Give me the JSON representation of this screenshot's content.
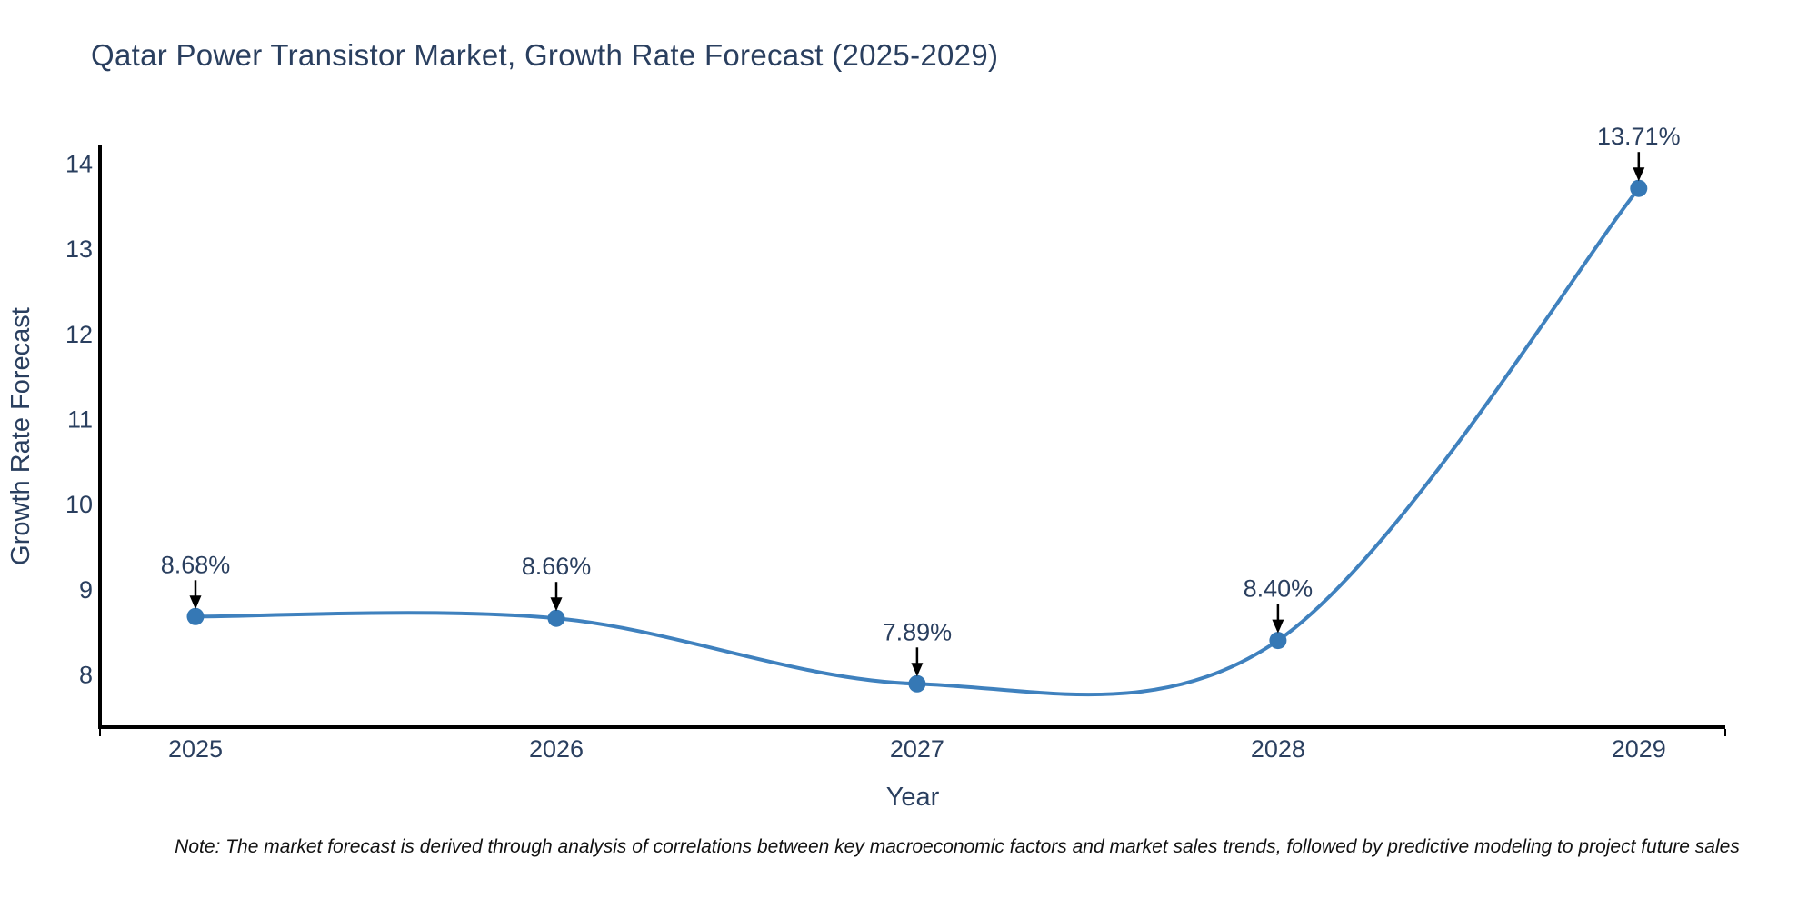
{
  "header": {
    "title": "Qatar Power Transistor Market, Growth Rate Forecast (2025-2029)"
  },
  "footnote": "Note: The market forecast is derived through analysis of correlations between key macroeconomic factors and market sales trends, followed by predictive modeling to project future sales",
  "chart_data": {
    "type": "line",
    "title": "Qatar Power Transistor Market, Growth Rate Forecast (2025-2029)",
    "xlabel": "Year",
    "ylabel": "Growth Rate Forecast",
    "categories": [
      "2025",
      "2026",
      "2027",
      "2028",
      "2029"
    ],
    "x": [
      2025,
      2026,
      2027,
      2028,
      2029
    ],
    "values": [
      8.68,
      8.66,
      7.89,
      8.4,
      13.71
    ],
    "point_labels": [
      "8.68%",
      "8.66%",
      "7.89%",
      "8.40%",
      "13.71%"
    ],
    "yticks": [
      8,
      9,
      10,
      11,
      12,
      13,
      14
    ],
    "xlim": [
      2024.7355,
      2029.2397
    ],
    "ylim": [
      7.381,
      14.2135
    ],
    "grid": false,
    "legend": false,
    "smooth": true,
    "colors": {
      "line": "#3f81be",
      "marker": "#3578b5",
      "axis": "#000000",
      "text": "#2a3f5f",
      "arrow": "#000000"
    }
  }
}
